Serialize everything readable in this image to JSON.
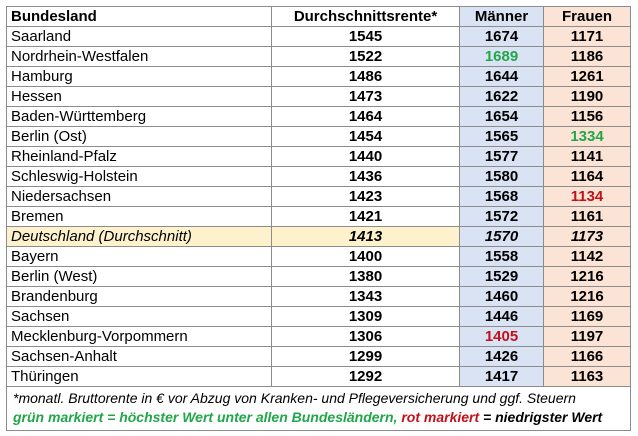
{
  "header": {
    "state": "Bundesland",
    "avg": "Durchschnittsrente*",
    "men": "Männer",
    "women": "Frauen"
  },
  "rows": [
    {
      "state": "Saarland",
      "avg": "1545",
      "men": "1674",
      "women": "1171"
    },
    {
      "state": "Nordrhein-Westfalen",
      "avg": "1522",
      "men": "1689",
      "women": "1186"
    },
    {
      "state": "Hamburg",
      "avg": "1486",
      "men": "1644",
      "women": "1261"
    },
    {
      "state": "Hessen",
      "avg": "1473",
      "men": "1622",
      "women": "1190"
    },
    {
      "state": "Baden-Württemberg",
      "avg": "1464",
      "men": "1654",
      "women": "1156"
    },
    {
      "state": "Berlin (Ost)",
      "avg": "1454",
      "men": "1565",
      "women": "1334"
    },
    {
      "state": "Rheinland-Pfalz",
      "avg": "1440",
      "men": "1577",
      "women": "1141"
    },
    {
      "state": "Schleswig-Holstein",
      "avg": "1436",
      "men": "1580",
      "women": "1164"
    },
    {
      "state": "Niedersachsen",
      "avg": "1423",
      "men": "1568",
      "women": "1134"
    },
    {
      "state": "Bremen",
      "avg": "1421",
      "men": "1572",
      "women": "1161"
    },
    {
      "state": "Deutschland (Durchschnitt)",
      "avg": "1413",
      "men": "1570",
      "women": "1173"
    },
    {
      "state": "Bayern",
      "avg": "1400",
      "men": "1558",
      "women": "1142"
    },
    {
      "state": "Berlin (West)",
      "avg": "1380",
      "men": "1529",
      "women": "1216"
    },
    {
      "state": "Brandenburg",
      "avg": "1343",
      "men": "1460",
      "women": "1216"
    },
    {
      "state": "Sachsen",
      "avg": "1309",
      "men": "1446",
      "women": "1169"
    },
    {
      "state": "Mecklenburg-Vorpommern",
      "avg": "1306",
      "men": "1405",
      "women": "1197"
    },
    {
      "state": "Sachsen-Anhalt",
      "avg": "1299",
      "men": "1426",
      "women": "1166"
    },
    {
      "state": "Thüringen",
      "avg": "1292",
      "men": "1417",
      "women": "1163"
    }
  ],
  "footnote": "*monatl. Bruttorente in € vor Abzug von Kranken- und Pflegeversicherung und ggf. Steuern",
  "legend": {
    "green": "grün markiert = höchster Wert unter allen Bundesländern,",
    "red": "rot markiert",
    "red_rest": "= niedrigster Wert"
  },
  "colors": {
    "green": "#21a64a",
    "red": "#c0111a",
    "men_bg": "#dae3f3",
    "women_bg": "#fbe4d6",
    "avg_bg": "#fdf2cc"
  }
}
